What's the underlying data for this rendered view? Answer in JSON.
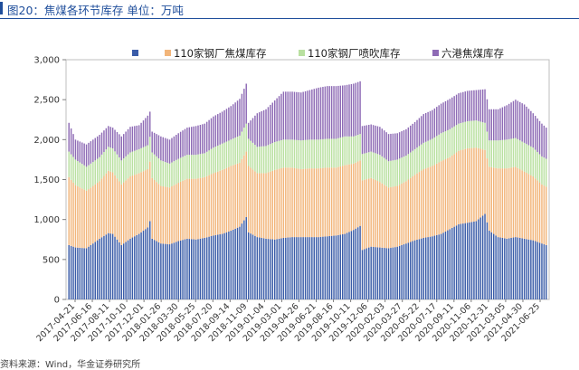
{
  "header": {
    "title": "图20：焦煤各环节库存 单位：万吨"
  },
  "footer": {
    "source": "资料来源：Wind，华金证券研究所"
  },
  "chart_data": {
    "type": "bar",
    "stacked": true,
    "y_ticks": [
      "0",
      "500",
      "1,000",
      "1,500",
      "2,000",
      "2,500",
      "3,000"
    ],
    "ylim": [
      0,
      3000
    ],
    "x_tick_labels": [
      "2017-04-21",
      "2017-06-16",
      "2017-08-11",
      "2017-10-10",
      "2017-12-01",
      "2018-01-26",
      "2018-03-30",
      "2018-05-25",
      "2018-07-20",
      "2018-09-14",
      "2018-11-09",
      "2019-01-04",
      "2019-03-01",
      "2019-04-26",
      "2019-06-21",
      "2019-08-16",
      "2019-10-11",
      "2019-12-06",
      "2020-02-03",
      "2020-03-27",
      "2020-05-22",
      "2020-07-17",
      "2020-09-11",
      "2020-11-06",
      "2020-12-31",
      "2021-03-05",
      "2021-04-30",
      "2021-06-25"
    ],
    "series": [
      {
        "name": "",
        "color": "#3a5ca8",
        "anchors": [
          [
            0,
            680
          ],
          [
            3,
            650
          ],
          [
            8,
            640
          ],
          [
            14,
            760
          ],
          [
            18,
            830
          ],
          [
            20,
            820
          ],
          [
            24,
            680
          ],
          [
            28,
            760
          ],
          [
            32,
            820
          ],
          [
            36,
            900
          ],
          [
            37,
            980
          ],
          [
            38,
            760
          ],
          [
            42,
            700
          ],
          [
            46,
            690
          ],
          [
            50,
            730
          ],
          [
            54,
            760
          ],
          [
            58,
            750
          ],
          [
            62,
            770
          ],
          [
            66,
            800
          ],
          [
            70,
            820
          ],
          [
            74,
            860
          ],
          [
            78,
            910
          ],
          [
            81,
            1030
          ],
          [
            82,
            840
          ],
          [
            86,
            780
          ],
          [
            90,
            760
          ],
          [
            94,
            750
          ],
          [
            98,
            770
          ],
          [
            102,
            780
          ],
          [
            106,
            780
          ],
          [
            110,
            780
          ],
          [
            114,
            780
          ],
          [
            118,
            790
          ],
          [
            122,
            800
          ],
          [
            126,
            820
          ],
          [
            130,
            870
          ],
          [
            133,
            920
          ],
          [
            134,
            620
          ],
          [
            138,
            660
          ],
          [
            142,
            650
          ],
          [
            146,
            640
          ],
          [
            150,
            660
          ],
          [
            154,
            700
          ],
          [
            158,
            740
          ],
          [
            162,
            770
          ],
          [
            166,
            790
          ],
          [
            170,
            820
          ],
          [
            174,
            880
          ],
          [
            178,
            940
          ],
          [
            182,
            960
          ],
          [
            186,
            980
          ],
          [
            190,
            1070
          ],
          [
            192,
            860
          ],
          [
            196,
            780
          ],
          [
            200,
            760
          ],
          [
            204,
            780
          ],
          [
            208,
            760
          ],
          [
            212,
            740
          ],
          [
            216,
            700
          ],
          [
            218,
            680
          ]
        ]
      },
      {
        "name": "110家钢厂焦煤库存",
        "color": "#f2b57a",
        "anchors": [
          [
            0,
            850
          ],
          [
            3,
            780
          ],
          [
            8,
            720
          ],
          [
            14,
            720
          ],
          [
            18,
            780
          ],
          [
            20,
            770
          ],
          [
            24,
            760
          ],
          [
            28,
            780
          ],
          [
            32,
            760
          ],
          [
            36,
            730
          ],
          [
            38,
            760
          ],
          [
            42,
            720
          ],
          [
            46,
            710
          ],
          [
            50,
            730
          ],
          [
            54,
            750
          ],
          [
            58,
            760
          ],
          [
            62,
            760
          ],
          [
            66,
            780
          ],
          [
            70,
            800
          ],
          [
            74,
            810
          ],
          [
            78,
            800
          ],
          [
            81,
            820
          ],
          [
            82,
            830
          ],
          [
            86,
            800
          ],
          [
            90,
            820
          ],
          [
            94,
            870
          ],
          [
            98,
            880
          ],
          [
            102,
            870
          ],
          [
            106,
            850
          ],
          [
            110,
            860
          ],
          [
            114,
            860
          ],
          [
            118,
            860
          ],
          [
            122,
            850
          ],
          [
            126,
            860
          ],
          [
            130,
            830
          ],
          [
            133,
            820
          ],
          [
            134,
            870
          ],
          [
            138,
            860
          ],
          [
            142,
            820
          ],
          [
            146,
            760
          ],
          [
            150,
            760
          ],
          [
            154,
            780
          ],
          [
            158,
            820
          ],
          [
            162,
            860
          ],
          [
            166,
            880
          ],
          [
            170,
            910
          ],
          [
            174,
            900
          ],
          [
            178,
            920
          ],
          [
            182,
            930
          ],
          [
            186,
            920
          ],
          [
            190,
            800
          ],
          [
            192,
            800
          ],
          [
            196,
            860
          ],
          [
            200,
            880
          ],
          [
            204,
            880
          ],
          [
            208,
            840
          ],
          [
            212,
            800
          ],
          [
            216,
            740
          ],
          [
            218,
            730
          ]
        ]
      },
      {
        "name": "110家钢厂喷吹库存",
        "color": "#b9e0a0",
        "anchors": [
          [
            0,
            320
          ],
          [
            3,
            320
          ],
          [
            8,
            300
          ],
          [
            14,
            300
          ],
          [
            18,
            300
          ],
          [
            20,
            300
          ],
          [
            24,
            300
          ],
          [
            28,
            300
          ],
          [
            32,
            300
          ],
          [
            36,
            300
          ],
          [
            38,
            320
          ],
          [
            42,
            320
          ],
          [
            46,
            300
          ],
          [
            50,
            300
          ],
          [
            54,
            300
          ],
          [
            58,
            300
          ],
          [
            62,
            300
          ],
          [
            66,
            320
          ],
          [
            70,
            330
          ],
          [
            74,
            330
          ],
          [
            78,
            340
          ],
          [
            81,
            350
          ],
          [
            82,
            340
          ],
          [
            86,
            330
          ],
          [
            90,
            340
          ],
          [
            94,
            350
          ],
          [
            98,
            350
          ],
          [
            102,
            350
          ],
          [
            106,
            360
          ],
          [
            110,
            360
          ],
          [
            114,
            360
          ],
          [
            118,
            360
          ],
          [
            122,
            360
          ],
          [
            126,
            360
          ],
          [
            130,
            340
          ],
          [
            133,
            330
          ],
          [
            134,
            330
          ],
          [
            138,
            330
          ],
          [
            142,
            340
          ],
          [
            146,
            330
          ],
          [
            150,
            330
          ],
          [
            154,
            320
          ],
          [
            158,
            320
          ],
          [
            162,
            330
          ],
          [
            166,
            340
          ],
          [
            170,
            350
          ],
          [
            174,
            350
          ],
          [
            178,
            340
          ],
          [
            182,
            340
          ],
          [
            186,
            340
          ],
          [
            190,
            340
          ],
          [
            192,
            330
          ],
          [
            196,
            350
          ],
          [
            200,
            360
          ],
          [
            204,
            360
          ],
          [
            208,
            360
          ],
          [
            212,
            360
          ],
          [
            216,
            350
          ],
          [
            218,
            350
          ]
        ]
      },
      {
        "name": "六港焦煤库存",
        "color": "#8e6bb5",
        "anchors": [
          [
            0,
            360
          ],
          [
            3,
            250
          ],
          [
            8,
            280
          ],
          [
            14,
            280
          ],
          [
            18,
            260
          ],
          [
            20,
            260
          ],
          [
            24,
            300
          ],
          [
            28,
            320
          ],
          [
            32,
            300
          ],
          [
            36,
            370
          ],
          [
            38,
            260
          ],
          [
            42,
            300
          ],
          [
            46,
            300
          ],
          [
            50,
            320
          ],
          [
            54,
            340
          ],
          [
            58,
            360
          ],
          [
            62,
            370
          ],
          [
            66,
            390
          ],
          [
            70,
            400
          ],
          [
            74,
            420
          ],
          [
            78,
            460
          ],
          [
            81,
            500
          ],
          [
            82,
            200
          ],
          [
            86,
            420
          ],
          [
            90,
            460
          ],
          [
            94,
            520
          ],
          [
            98,
            600
          ],
          [
            102,
            600
          ],
          [
            106,
            600
          ],
          [
            110,
            620
          ],
          [
            114,
            650
          ],
          [
            118,
            660
          ],
          [
            122,
            660
          ],
          [
            126,
            640
          ],
          [
            130,
            660
          ],
          [
            133,
            660
          ],
          [
            134,
            350
          ],
          [
            138,
            340
          ],
          [
            142,
            350
          ],
          [
            146,
            340
          ],
          [
            150,
            330
          ],
          [
            154,
            330
          ],
          [
            158,
            340
          ],
          [
            162,
            360
          ],
          [
            166,
            360
          ],
          [
            170,
            370
          ],
          [
            174,
            380
          ],
          [
            178,
            380
          ],
          [
            182,
            380
          ],
          [
            186,
            380
          ],
          [
            190,
            420
          ],
          [
            192,
            390
          ],
          [
            196,
            390
          ],
          [
            200,
            430
          ],
          [
            204,
            480
          ],
          [
            208,
            480
          ],
          [
            212,
            430
          ],
          [
            216,
            410
          ],
          [
            218,
            390
          ]
        ]
      }
    ]
  }
}
